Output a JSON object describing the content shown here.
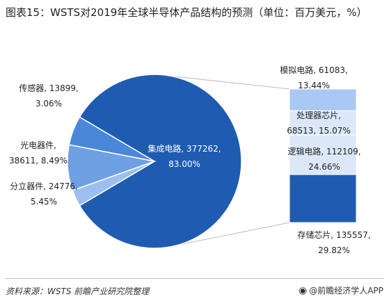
{
  "title": "图表15：WSTS对2019年全球半导体产品结构的预测（单位：百万美元，%）",
  "source": "资料来源：WSTS 前瞻产业研究院整理",
  "brand": "@前瞻经济学人APP",
  "brand_icon": "weibo-icon",
  "colors": {
    "ic": "#1f5cb1",
    "discrete": "#4b87d8",
    "opto": "#6ea0e3",
    "sensor": "#9dbff0",
    "memory": "#1f5cb1",
    "logic": "#dce8f8",
    "micro": "#dce8f8",
    "analog": "#a9c8f4",
    "connector": "#bbbbbb"
  },
  "chart_data": {
    "type": "bar-of-pie",
    "pie": [
      {
        "key": "ic",
        "label": "集成电路, 377262,",
        "pct_label": "83.00%",
        "value": 377262,
        "pct": 83.0
      },
      {
        "key": "discrete",
        "label": "分立器件, 24776,",
        "pct_label": "5.45%",
        "value": 24776,
        "pct": 5.45
      },
      {
        "key": "opto",
        "label": "光电器件,",
        "pct_label": "38611, 8.49%",
        "value": 38611,
        "pct": 8.49
      },
      {
        "key": "sensor",
        "label": "传感器, 13899,",
        "pct_label": "3.06%",
        "value": 13899,
        "pct": 3.06
      }
    ],
    "stack": [
      {
        "key": "memory",
        "label": "存储芯片, 135557,",
        "pct_label": "29.82%",
        "value": 135557,
        "pct": 29.82
      },
      {
        "key": "logic",
        "label": "逻辑电路, 112109,",
        "pct_label": "24.66%",
        "value": 112109,
        "pct": 24.66
      },
      {
        "key": "micro",
        "label": "处理器芯片,",
        "pct_label": "68513, 15.07%",
        "value": 68513,
        "pct": 15.07
      },
      {
        "key": "analog",
        "label": "模拟电路, 61083,",
        "pct_label": "13.44%",
        "value": 61083,
        "pct": 13.44
      }
    ]
  }
}
